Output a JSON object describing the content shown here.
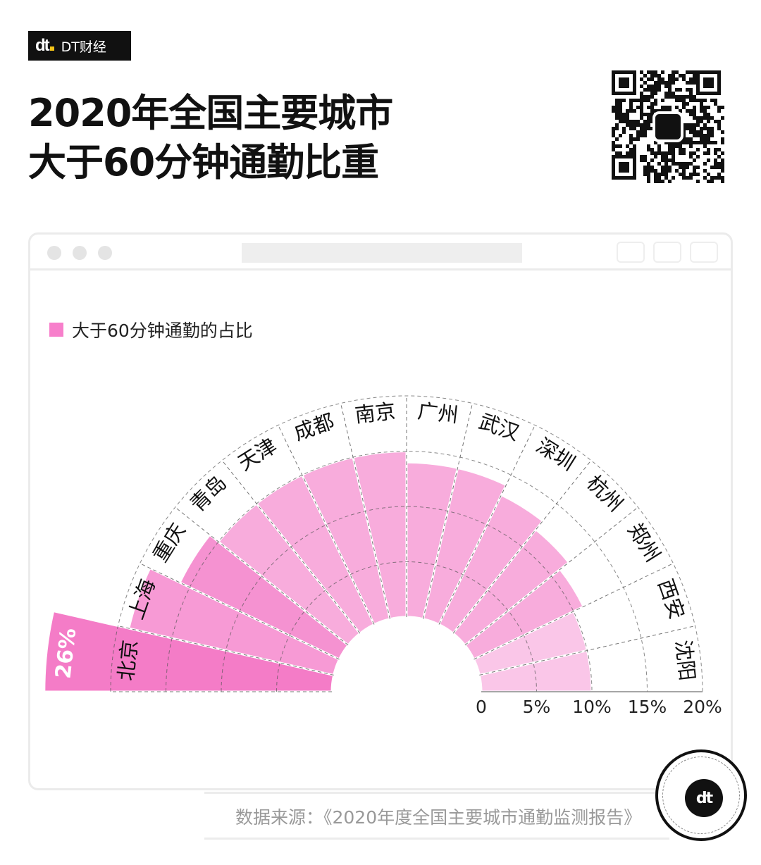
{
  "brand": {
    "mark": "dt",
    "name": "DT财经"
  },
  "title": {
    "line1": "2020年全国主要城市",
    "line2": "大于60分钟通勤比重"
  },
  "chart_data": {
    "type": "radial-bar",
    "legend": {
      "label": "大于60分钟通勤的占比",
      "color": "#f77fcb",
      "placement": "top-left"
    },
    "categories": [
      "北京",
      "上海",
      "重庆",
      "青岛",
      "天津",
      "成都",
      "南京",
      "广州",
      "武汉",
      "深圳",
      "杭州",
      "郑州",
      "西安",
      "沈阳"
    ],
    "values": [
      26,
      19,
      16,
      15,
      15,
      15,
      15,
      14,
      14,
      13,
      12,
      11,
      10,
      10
    ],
    "colors": [
      "#f47cc7",
      "#f79ad5",
      "#f592d1",
      "#f8acdc",
      "#f8acdc",
      "#f8acdc",
      "#f8acdc",
      "#f8acdc",
      "#f8acdc",
      "#f8acdc",
      "#f8acdc",
      "#f8acdc",
      "#fac6e8",
      "#fac6e8"
    ],
    "data_labels": {
      "北京": "26%"
    },
    "radial_axis": {
      "range": [
        0,
        20
      ],
      "ticks": [
        "0",
        "5%",
        "10%",
        "15%",
        "20%"
      ],
      "tick_values": [
        0,
        5,
        10,
        15,
        20
      ]
    },
    "grid": true
  },
  "source": "数据来源：《2020年度全国主要城市通勤监测报告》"
}
